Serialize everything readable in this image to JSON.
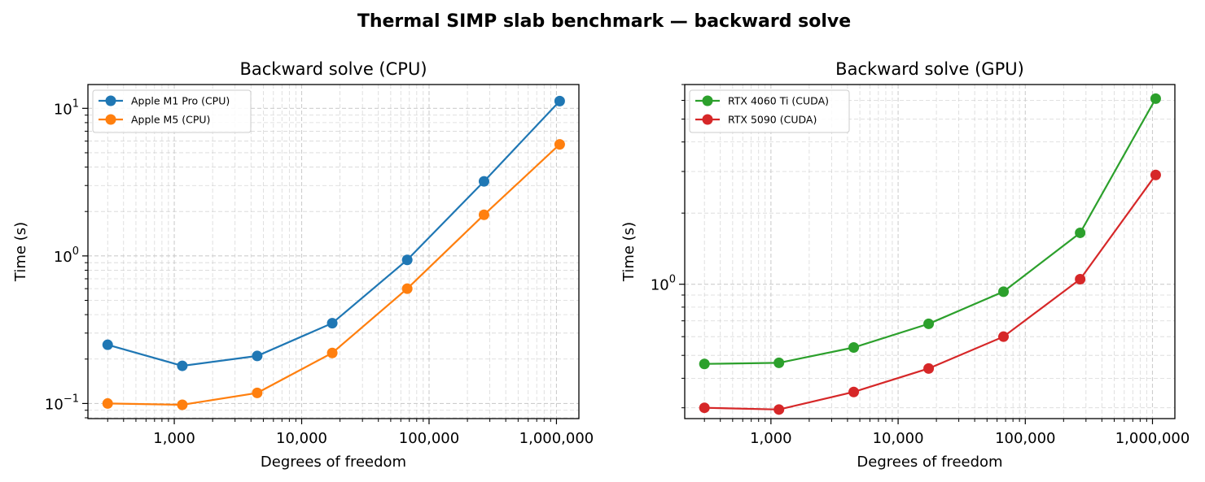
{
  "figure": {
    "suptitle": "Thermal SIMP slab benchmark — backward solve"
  },
  "chart_data": [
    {
      "type": "line",
      "title": "Backward solve (CPU)",
      "xlabel": "Degrees of freedom",
      "ylabel": "Time (s)",
      "xscale": "log",
      "yscale": "log",
      "xlim": [
        210,
        1500000
      ],
      "ylim": [
        0.079,
        14.5
      ],
      "x": [
        300,
        1156,
        4476,
        17380,
        67396,
        270000,
        1060000
      ],
      "x_ticks": [
        1000,
        10000,
        100000,
        1000000
      ],
      "x_tick_labels": [
        "1,000",
        "10,000",
        "100,000",
        "1,000,000"
      ],
      "y_ticks": [
        0.1,
        1,
        10
      ],
      "y_tick_labels": [
        {
          "base": "10",
          "exp": "−1"
        },
        {
          "base": "10",
          "exp": "0"
        },
        {
          "base": "10",
          "exp": "1"
        }
      ],
      "grid": true,
      "legend_position": "top-left",
      "series": [
        {
          "name": "Apple M1 Pro (CPU)",
          "color": "#1f77b4",
          "values": [
            0.25,
            0.18,
            0.21,
            0.35,
            0.94,
            3.2,
            11.2
          ]
        },
        {
          "name": "Apple M5 (CPU)",
          "color": "#ff7f0e",
          "values": [
            0.1,
            0.098,
            0.118,
            0.22,
            0.6,
            1.9,
            5.7
          ]
        }
      ]
    },
    {
      "type": "line",
      "title": "Backward solve (GPU)",
      "xlabel": "Degrees of freedom",
      "ylabel": "Time (s)",
      "xscale": "log",
      "yscale": "log",
      "xlim": [
        210,
        1500000
      ],
      "ylim": [
        0.27,
        7.0
      ],
      "x": [
        300,
        1156,
        4476,
        17380,
        67396,
        270000,
        1060000
      ],
      "x_ticks": [
        1000,
        10000,
        100000,
        1000000
      ],
      "x_tick_labels": [
        "1,000",
        "10,000",
        "100,000",
        "1,000,000"
      ],
      "y_ticks": [
        1
      ],
      "y_tick_labels": [
        {
          "base": "10",
          "exp": "0"
        }
      ],
      "grid": true,
      "legend_position": "top-left",
      "series": [
        {
          "name": "RTX 4060 Ti (CUDA)",
          "color": "#2ca02c",
          "values": [
            0.46,
            0.465,
            0.54,
            0.68,
            0.93,
            1.65,
            6.1
          ]
        },
        {
          "name": "RTX 5090 (CUDA)",
          "color": "#d62728",
          "values": [
            0.3,
            0.295,
            0.35,
            0.44,
            0.6,
            1.05,
            2.9
          ]
        }
      ]
    }
  ]
}
